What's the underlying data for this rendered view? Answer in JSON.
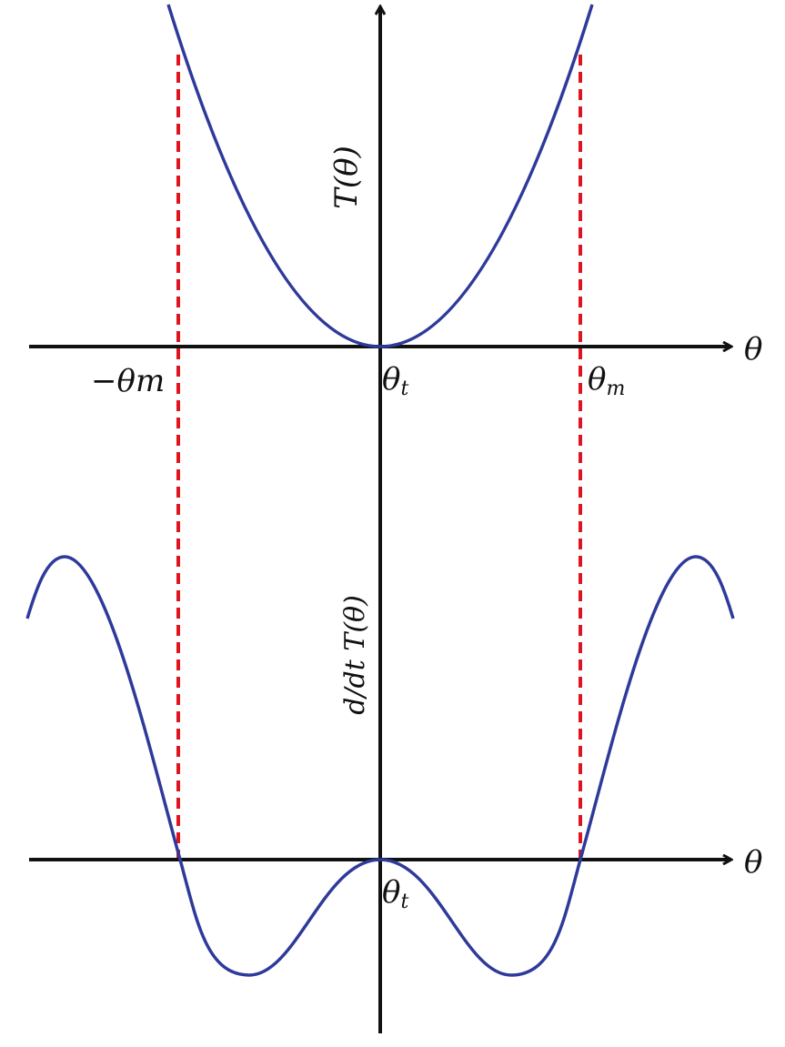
{
  "colors": {
    "axis": "#111111",
    "curve": "#2e3a9a",
    "guide": "#e0141e",
    "background": "#ffffff"
  },
  "top_plot": {
    "y_label": "T(θ)",
    "x_axis_label": "θ",
    "ticks": {
      "neg_theta_m": "−θm",
      "theta_t": "θt",
      "theta_m": "θm"
    }
  },
  "bottom_plot": {
    "y_label": "d/dt T(θ)",
    "x_axis_label": "θ",
    "ticks": {
      "theta_t": "θt"
    }
  },
  "text": {
    "T": "T",
    "theta": "θ",
    "minus": "−",
    "m": "m",
    "t": "t",
    "d": "d",
    "dt": "dt",
    "paren_open": "(",
    "paren_close": ")"
  }
}
